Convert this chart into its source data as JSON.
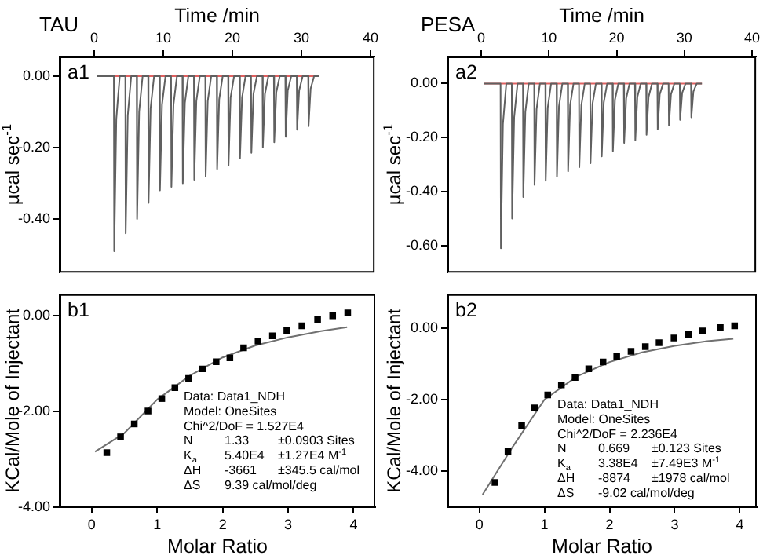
{
  "chart_data": [
    {
      "type": "line",
      "title": "TAU",
      "xlabel": "Time /min",
      "ylabel": "µcal sec$^{-1}$",
      "xlim": [
        -5,
        40.6
      ],
      "xticks": [
        0,
        10,
        20,
        30,
        40
      ],
      "ylim": [
        -0.55,
        0.055
      ],
      "yticks": [
        {
          "value": 0,
          "label": "0.00"
        },
        {
          "value": -0.2,
          "label": "-0.20"
        },
        {
          "value": -0.4,
          "label": "-0.40"
        }
      ],
      "annotations": [
        "a1"
      ],
      "series": [
        {
          "color": "#606060",
          "x": [
            0.4,
            2.85,
            2.9,
            3.2,
            3.7,
            4.51,
            4.56,
            4.86,
            5.36,
            6.16,
            6.21,
            6.51,
            7.01,
            7.82,
            7.87,
            8.17,
            8.67,
            9.47,
            9.52,
            9.82,
            10.32,
            11.13,
            11.18,
            11.48,
            11.98,
            12.78,
            12.83,
            13.13,
            13.63,
            14.44,
            14.49,
            14.79,
            15.29,
            16.09,
            16.14,
            16.44,
            16.94,
            17.75,
            17.8,
            18.1,
            18.6,
            19.4,
            19.45,
            19.75,
            20.25,
            21.06,
            21.11,
            21.41,
            21.91,
            22.71,
            22.76,
            23.06,
            23.56,
            24.37,
            24.42,
            24.72,
            25.22,
            26.02,
            26.07,
            26.37,
            26.87,
            27.68,
            27.73,
            28.03,
            28.53,
            29.33,
            29.38,
            29.68,
            30.18,
            30.99,
            31.04,
            31.34,
            31.84,
            32.6
          ],
          "values": [
            0,
            0,
            -0.49,
            -0.12,
            0,
            0,
            -0.44,
            -0.11,
            0,
            0,
            -0.4,
            -0.1,
            0,
            0,
            -0.355,
            -0.09,
            0,
            0,
            -0.32,
            -0.08,
            0,
            0,
            -0.31,
            -0.08,
            0,
            0,
            -0.3,
            -0.075,
            0,
            0,
            -0.29,
            -0.07,
            0,
            0,
            -0.28,
            -0.07,
            0,
            0,
            -0.26,
            -0.065,
            0,
            0,
            -0.25,
            -0.06,
            0,
            0,
            -0.23,
            -0.06,
            0,
            0,
            -0.215,
            -0.05,
            0,
            0,
            -0.2,
            -0.05,
            0,
            0,
            -0.185,
            -0.045,
            0,
            0,
            -0.17,
            -0.04,
            0,
            0,
            -0.15,
            -0.04,
            0,
            0,
            -0.14,
            -0.035,
            0,
            0
          ]
        },
        {
          "color": "#e06060",
          "x": [
            0.4,
            32.6
          ],
          "values": [
            0,
            0
          ]
        }
      ]
    },
    {
      "type": "line",
      "title": "PESA",
      "xlabel": "Time /min",
      "ylabel": "µcal sec$^{-1}$",
      "xlim": [
        -5,
        40.6
      ],
      "xticks": [
        0,
        10,
        20,
        30,
        40
      ],
      "ylim": [
        -0.7,
        0.1
      ],
      "yticks": [
        {
          "value": 0,
          "label": "0.00"
        },
        {
          "value": -0.2,
          "label": "-0.20"
        },
        {
          "value": -0.4,
          "label": "-0.40"
        },
        {
          "value": -0.6,
          "label": "-0.60"
        }
      ],
      "annotations": [
        "a2"
      ],
      "series": [
        {
          "color": "#606060",
          "x": [
            0.4,
            2.85,
            2.9,
            3.2,
            3.7,
            4.51,
            4.56,
            4.86,
            5.36,
            6.16,
            6.21,
            6.51,
            7.01,
            7.82,
            7.87,
            8.17,
            8.67,
            9.47,
            9.52,
            9.82,
            10.32,
            11.13,
            11.18,
            11.48,
            11.98,
            12.78,
            12.83,
            13.13,
            13.63,
            14.44,
            14.49,
            14.79,
            15.29,
            16.09,
            16.14,
            16.44,
            16.94,
            17.75,
            17.8,
            18.1,
            18.6,
            19.4,
            19.45,
            19.75,
            20.25,
            21.06,
            21.11,
            21.41,
            21.91,
            22.71,
            22.76,
            23.06,
            23.56,
            24.37,
            24.42,
            24.72,
            25.22,
            26.02,
            26.07,
            26.37,
            26.87,
            27.68,
            27.73,
            28.03,
            28.53,
            29.33,
            29.38,
            29.68,
            30.18,
            30.99,
            31.04,
            31.34,
            31.84,
            32.6
          ],
          "values": [
            0,
            0,
            -0.61,
            -0.15,
            0,
            0,
            -0.5,
            -0.125,
            0,
            0,
            -0.42,
            -0.105,
            0,
            0,
            -0.375,
            -0.095,
            0,
            0,
            -0.36,
            -0.09,
            0,
            0,
            -0.345,
            -0.085,
            0,
            0,
            -0.325,
            -0.08,
            0,
            0,
            -0.31,
            -0.08,
            0,
            0,
            -0.295,
            -0.075,
            0,
            0,
            -0.27,
            -0.07,
            0,
            0,
            -0.25,
            -0.06,
            0,
            0,
            -0.22,
            -0.055,
            0,
            0,
            -0.21,
            -0.05,
            0,
            0,
            -0.19,
            -0.05,
            0,
            0,
            -0.17,
            -0.04,
            0,
            0,
            -0.155,
            -0.04,
            0,
            0,
            -0.135,
            -0.035,
            0,
            0,
            -0.125,
            -0.03,
            0,
            0
          ]
        },
        {
          "color": "#e06060",
          "x": [
            0.4,
            32.6
          ],
          "values": [
            0,
            0
          ]
        }
      ]
    },
    {
      "type": "scatter",
      "xlabel": "Molar Ratio",
      "ylabel": "KCal/Mole of Injectant",
      "xlim": [
        -0.49,
        4.33
      ],
      "xticks": [
        0,
        1,
        2,
        3,
        4
      ],
      "ylim": [
        -4.0,
        0.45
      ],
      "yticks": [
        {
          "value": 0,
          "label": "0.00"
        },
        {
          "value": -2,
          "label": "-2.00"
        },
        {
          "value": -4,
          "label": "-4.00"
        }
      ],
      "annotations": [
        "b1",
        "Data: Data1_NDH",
        "Model: OneSites",
        "Chi^2/DoF = 1.527E4",
        "N\t1.33\t±0.0903 Sites",
        "K$_{a}$\t5.40E4\t±1.27E4 M$^{-1}$",
        "ΔH\t-3661\t±345.5 cal/mol",
        "ΔS\t9.39 cal/mol/deg"
      ],
      "series": [
        {
          "color": "#000000",
          "marker": "square",
          "x": [
            0.23,
            0.44,
            0.65,
            0.86,
            1.07,
            1.27,
            1.48,
            1.69,
            1.9,
            2.11,
            2.32,
            2.54,
            2.76,
            2.98,
            3.21,
            3.45,
            3.68,
            3.91
          ],
          "values": [
            -2.86,
            -2.53,
            -2.26,
            -1.99,
            -1.73,
            -1.5,
            -1.31,
            -1.11,
            -0.96,
            -0.88,
            -0.67,
            -0.53,
            -0.42,
            -0.31,
            -0.21,
            -0.08,
            0.0,
            0.06
          ]
        },
        {
          "type": "line",
          "color": "#707070",
          "x": [
            0.05,
            0.5,
            1.0,
            1.5,
            2.0,
            2.5,
            3.0,
            3.5,
            3.9
          ],
          "values": [
            -2.84,
            -2.45,
            -1.75,
            -1.25,
            -0.87,
            -0.62,
            -0.45,
            -0.32,
            -0.24
          ]
        }
      ]
    },
    {
      "type": "scatter",
      "xlabel": "Molar Ratio",
      "ylabel": "KCal/Mole of Injectant",
      "xlim": [
        -0.49,
        4.26
      ],
      "xticks": [
        0,
        1,
        2,
        3,
        4
      ],
      "ylim": [
        -5.0,
        0.94
      ],
      "yticks": [
        {
          "value": 0,
          "label": "0.00"
        },
        {
          "value": -2,
          "label": "-2.00"
        },
        {
          "value": -4,
          "label": "-4.00"
        }
      ],
      "annotations": [
        "b2",
        "Data: Data1_NDH",
        "Model: OneSites",
        "Chi^2/DoF = 2.236E4",
        "N\t0.669\t±0.123 Sites",
        "K$_{a}$\t3.38E4\t±7.49E3 M$^{-1}$",
        "ΔH\t-8874\t±1978 cal/mol",
        "ΔS\t-9.02 cal/mol/deg"
      ],
      "series": [
        {
          "color": "#000000",
          "marker": "square",
          "x": [
            0.24,
            0.44,
            0.65,
            0.85,
            1.05,
            1.26,
            1.47,
            1.68,
            1.9,
            2.11,
            2.33,
            2.55,
            2.76,
            2.99,
            3.21,
            3.43,
            3.7,
            3.92
          ],
          "values": [
            -4.31,
            -3.44,
            -2.72,
            -2.23,
            -1.87,
            -1.59,
            -1.38,
            -1.14,
            -0.95,
            -0.8,
            -0.65,
            -0.52,
            -0.41,
            -0.28,
            -0.18,
            -0.08,
            0.01,
            0.06
          ]
        },
        {
          "type": "line",
          "color": "#707070",
          "x": [
            0.05,
            0.5,
            1.0,
            1.5,
            2.0,
            2.5,
            3.0,
            3.5,
            3.9
          ],
          "values": [
            -4.65,
            -3.35,
            -2.0,
            -1.35,
            -0.95,
            -0.68,
            -0.5,
            -0.37,
            -0.3
          ]
        }
      ]
    }
  ]
}
